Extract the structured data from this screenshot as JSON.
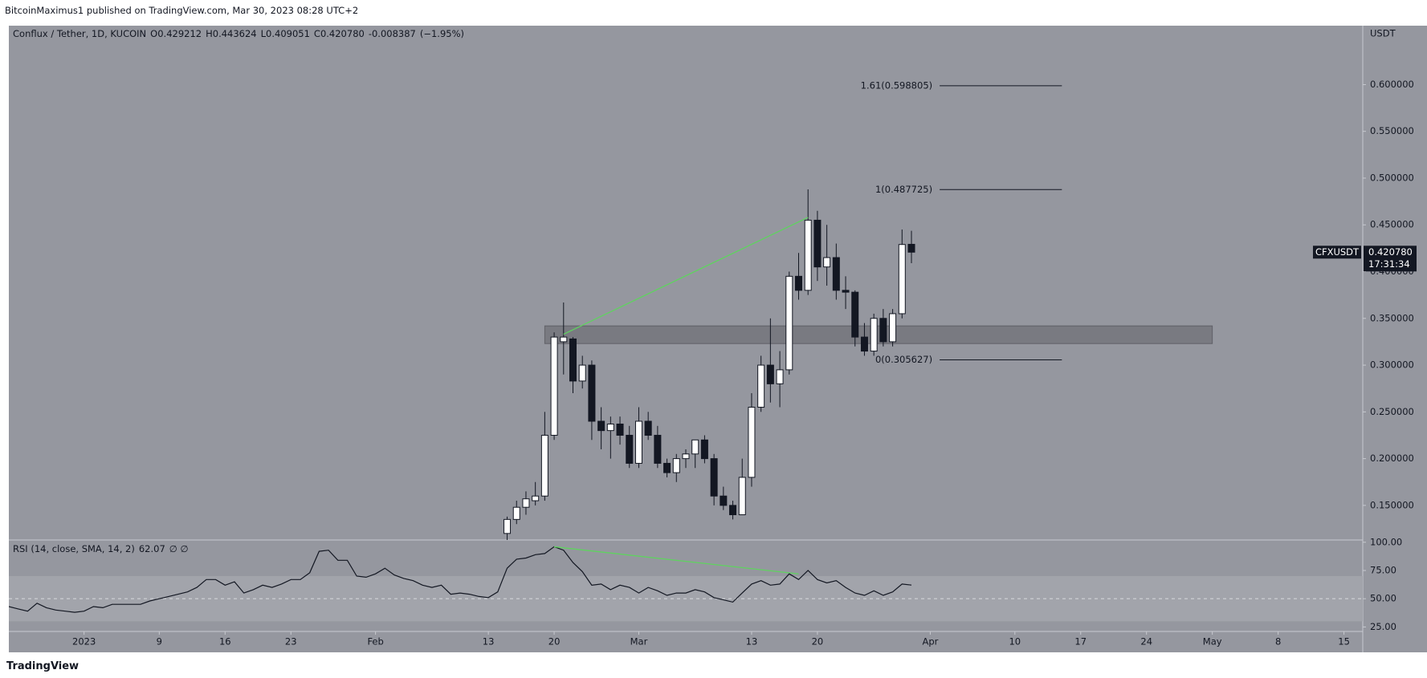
{
  "header": {
    "publisher": "BitcoinMaximus1 published on TradingView.com, Mar 30, 2023 08:28 UTC+2"
  },
  "footer": {
    "brand": "TradingView"
  },
  "chart_data": [
    {
      "type": "candlestick",
      "title": "Conflux / Tether, 1D, KUCOIN",
      "currency": "USDT",
      "ohlc": [
        {
          "label": "O",
          "value": 0.429212
        },
        {
          "label": "H",
          "value": 0.443624
        },
        {
          "label": "L",
          "value": 0.409051
        },
        {
          "label": "C",
          "value": 0.42078,
          "value_label": "0.420780"
        }
      ],
      "change": -0.008387,
      "change_pct": -1.95,
      "change_pct_label": "(−1.95%)",
      "x": [
        "2023-02-15",
        "2023-02-16",
        "2023-02-17",
        "2023-02-18",
        "2023-02-19",
        "2023-02-20",
        "2023-02-21",
        "2023-02-22",
        "2023-02-23",
        "2023-02-24",
        "2023-02-25",
        "2023-02-26",
        "2023-02-27",
        "2023-02-28",
        "2023-03-01",
        "2023-03-02",
        "2023-03-03",
        "2023-03-04",
        "2023-03-05",
        "2023-03-06",
        "2023-03-07",
        "2023-03-08",
        "2023-03-09",
        "2023-03-10",
        "2023-03-11",
        "2023-03-12",
        "2023-03-13",
        "2023-03-14",
        "2023-03-15",
        "2023-03-16",
        "2023-03-17",
        "2023-03-18",
        "2023-03-19",
        "2023-03-20",
        "2023-03-21",
        "2023-03-22",
        "2023-03-23",
        "2023-03-24",
        "2023-03-25",
        "2023-03-26",
        "2023-03-27",
        "2023-03-28",
        "2023-03-29",
        "2023-03-30"
      ],
      "open": [
        0.12,
        0.135,
        0.148,
        0.155,
        0.16,
        0.225,
        0.325,
        0.328,
        0.283,
        0.3,
        0.24,
        0.23,
        0.237,
        0.225,
        0.195,
        0.24,
        0.225,
        0.195,
        0.185,
        0.2,
        0.205,
        0.22,
        0.2,
        0.16,
        0.15,
        0.14,
        0.18,
        0.255,
        0.3,
        0.28,
        0.295,
        0.395,
        0.38,
        0.455,
        0.405,
        0.415,
        0.38,
        0.378,
        0.33,
        0.315,
        0.35,
        0.325,
        0.355,
        0.429212
      ],
      "high": [
        0.138,
        0.155,
        0.165,
        0.175,
        0.25,
        0.335,
        0.367,
        0.33,
        0.31,
        0.305,
        0.255,
        0.245,
        0.245,
        0.235,
        0.255,
        0.25,
        0.235,
        0.2,
        0.205,
        0.21,
        0.22,
        0.225,
        0.205,
        0.17,
        0.155,
        0.2,
        0.27,
        0.31,
        0.35,
        0.315,
        0.4,
        0.42,
        0.488,
        0.465,
        0.45,
        0.43,
        0.395,
        0.38,
        0.345,
        0.355,
        0.36,
        0.36,
        0.445,
        0.443624
      ],
      "low": [
        0.11,
        0.13,
        0.14,
        0.15,
        0.155,
        0.22,
        0.29,
        0.27,
        0.275,
        0.22,
        0.21,
        0.2,
        0.215,
        0.19,
        0.19,
        0.22,
        0.19,
        0.18,
        0.175,
        0.19,
        0.19,
        0.195,
        0.15,
        0.145,
        0.135,
        0.14,
        0.17,
        0.25,
        0.26,
        0.255,
        0.29,
        0.37,
        0.375,
        0.39,
        0.385,
        0.37,
        0.36,
        0.32,
        0.31,
        0.31,
        0.32,
        0.32,
        0.35,
        0.409051
      ],
      "close": [
        0.135,
        0.148,
        0.157,
        0.16,
        0.225,
        0.33,
        0.33,
        0.283,
        0.3,
        0.24,
        0.23,
        0.237,
        0.225,
        0.195,
        0.24,
        0.225,
        0.195,
        0.185,
        0.2,
        0.205,
        0.22,
        0.2,
        0.16,
        0.15,
        0.14,
        0.18,
        0.255,
        0.3,
        0.28,
        0.295,
        0.395,
        0.38,
        0.455,
        0.405,
        0.415,
        0.38,
        0.378,
        0.33,
        0.315,
        0.35,
        0.325,
        0.355,
        0.429,
        0.42078
      ],
      "xlim": [
        "2022-12-24",
        "2023-05-17"
      ],
      "xticks": [
        {
          "value": "2023-01-01",
          "label": "2023"
        },
        {
          "value": "2023-01-09",
          "label": "9"
        },
        {
          "value": "2023-01-16",
          "label": "16"
        },
        {
          "value": "2023-01-23",
          "label": "23"
        },
        {
          "value": "2023-02-01",
          "label": "Feb"
        },
        {
          "value": "2023-02-13",
          "label": "13"
        },
        {
          "value": "2023-02-20",
          "label": "20"
        },
        {
          "value": "2023-03-01",
          "label": "Mar"
        },
        {
          "value": "2023-03-13",
          "label": "13"
        },
        {
          "value": "2023-03-20",
          "label": "20"
        },
        {
          "value": "2023-04-01",
          "label": "Apr"
        },
        {
          "value": "2023-04-10",
          "label": "10"
        },
        {
          "value": "2023-04-17",
          "label": "17"
        },
        {
          "value": "2023-04-24",
          "label": "24"
        },
        {
          "value": "2023-05-01",
          "label": "May"
        },
        {
          "value": "2023-05-08",
          "label": "8"
        },
        {
          "value": "2023-05-15",
          "label": "15"
        }
      ],
      "ylim": [
        0.113,
        0.663
      ],
      "yticks": [
        {
          "value": 0.15,
          "label": "0.150000"
        },
        {
          "value": 0.2,
          "label": "0.200000"
        },
        {
          "value": 0.25,
          "label": "0.250000"
        },
        {
          "value": 0.3,
          "label": "0.300000"
        },
        {
          "value": 0.35,
          "label": "0.350000"
        },
        {
          "value": 0.4,
          "label": "0.400000"
        },
        {
          "value": 0.45,
          "label": "0.450000"
        },
        {
          "value": 0.5,
          "label": "0.500000"
        },
        {
          "value": 0.55,
          "label": "0.550000"
        },
        {
          "value": 0.6,
          "label": "0.600000"
        }
      ],
      "last_price": {
        "symbol": "CFXUSDT",
        "value": 0.42078,
        "label": "0.420780",
        "countdown": "17:31:34"
      },
      "fib_levels": [
        {
          "value": 0.598805,
          "label": "1.61(0.598805)"
        },
        {
          "value": 0.487725,
          "label": "1(0.487725)"
        },
        {
          "value": 0.305627,
          "label": "0(0.305627)"
        }
      ],
      "fib_x": [
        "2023-04-02",
        "2023-04-15"
      ],
      "zone": {
        "y": [
          0.323,
          0.342
        ],
        "x": [
          "2023-02-19",
          "2023-05-01"
        ]
      },
      "trend_line": {
        "x": [
          "2023-02-21",
          "2023-03-19"
        ],
        "y": [
          0.333,
          0.458
        ],
        "color": "#5fd35f"
      },
      "bull_color": "#ffffff",
      "bear_color": "#131722"
    },
    {
      "type": "line",
      "title": "RSI (14, close, SMA, 14, 2)",
      "last_value": 62.07,
      "extra": "∅ ∅",
      "color": "#131722",
      "x": [
        "2022-12-24",
        "2022-12-25",
        "2022-12-26",
        "2022-12-27",
        "2022-12-28",
        "2022-12-29",
        "2022-12-30",
        "2022-12-31",
        "2023-01-01",
        "2023-01-02",
        "2023-01-03",
        "2023-01-04",
        "2023-01-05",
        "2023-01-06",
        "2023-01-07",
        "2023-01-08",
        "2023-01-09",
        "2023-01-10",
        "2023-01-11",
        "2023-01-12",
        "2023-01-13",
        "2023-01-14",
        "2023-01-15",
        "2023-01-16",
        "2023-01-17",
        "2023-01-18",
        "2023-01-19",
        "2023-01-20",
        "2023-01-21",
        "2023-01-22",
        "2023-01-23",
        "2023-01-24",
        "2023-01-25",
        "2023-01-26",
        "2023-01-27",
        "2023-01-28",
        "2023-01-29",
        "2023-01-30",
        "2023-01-31",
        "2023-02-01",
        "2023-02-02",
        "2023-02-03",
        "2023-02-04",
        "2023-02-05",
        "2023-02-06",
        "2023-02-07",
        "2023-02-08",
        "2023-02-09",
        "2023-02-10",
        "2023-02-11",
        "2023-02-12",
        "2023-02-13",
        "2023-02-14",
        "2023-02-15",
        "2023-02-16",
        "2023-02-17",
        "2023-02-18",
        "2023-02-19",
        "2023-02-20",
        "2023-02-21",
        "2023-02-22",
        "2023-02-23",
        "2023-02-24",
        "2023-02-25",
        "2023-02-26",
        "2023-02-27",
        "2023-02-28",
        "2023-03-01",
        "2023-03-02",
        "2023-03-03",
        "2023-03-04",
        "2023-03-05",
        "2023-03-06",
        "2023-03-07",
        "2023-03-08",
        "2023-03-09",
        "2023-03-10",
        "2023-03-11",
        "2023-03-12",
        "2023-03-13",
        "2023-03-14",
        "2023-03-15",
        "2023-03-16",
        "2023-03-17",
        "2023-03-18",
        "2023-03-19",
        "2023-03-20",
        "2023-03-21",
        "2023-03-22",
        "2023-03-23",
        "2023-03-24",
        "2023-03-25",
        "2023-03-26",
        "2023-03-27",
        "2023-03-28",
        "2023-03-29",
        "2023-03-30"
      ],
      "values": [
        43,
        41,
        39,
        46,
        42,
        40,
        39,
        38,
        39,
        43,
        42,
        45,
        45,
        45,
        45,
        48,
        50,
        52,
        54,
        56,
        60,
        67,
        67,
        62,
        65,
        55,
        58,
        62,
        60,
        63,
        67,
        67,
        73,
        92,
        93,
        84,
        84,
        70,
        69,
        72,
        77,
        71,
        68,
        66,
        62,
        60,
        62,
        54,
        55,
        54,
        52,
        51,
        56,
        77,
        85,
        86,
        89,
        90,
        96,
        93,
        82,
        74,
        62,
        63,
        58,
        62,
        60,
        55,
        60,
        57,
        53,
        55,
        55,
        58,
        56,
        51,
        49,
        47,
        55,
        63,
        66,
        62,
        63,
        72,
        67,
        75,
        67,
        64,
        66,
        60,
        55,
        53,
        57,
        53,
        56,
        63,
        62.07
      ],
      "ylim": [
        21,
        102
      ],
      "yticks": [
        {
          "value": 100,
          "label": "100.00"
        },
        {
          "value": 75,
          "label": "75.00"
        },
        {
          "value": 50,
          "label": "50.00"
        },
        {
          "value": 25,
          "label": "25.00"
        }
      ],
      "band": [
        30,
        70
      ],
      "trend_line": {
        "x": [
          "2023-02-20",
          "2023-03-18"
        ],
        "y": [
          96,
          72
        ],
        "color": "#5fd35f"
      }
    }
  ]
}
